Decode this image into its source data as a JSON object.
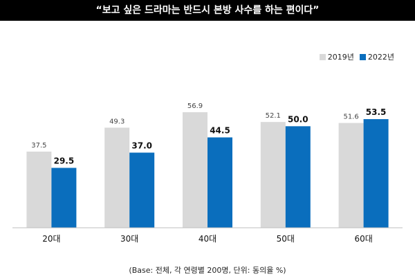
{
  "chart_data": {
    "type": "bar",
    "title": "“보고 싶은 드라마는 반드시 본방 사수를 하는 편이다”",
    "categories": [
      "20대",
      "30대",
      "40대",
      "50대",
      "60대"
    ],
    "series": [
      {
        "name": "2019년",
        "values": [
          37.5,
          49.3,
          56.9,
          52.1,
          51.6
        ],
        "labels": [
          "37.5",
          "49.3",
          "56.9",
          "52.1",
          "51.6"
        ],
        "color": "#d9d9d9"
      },
      {
        "name": "2022년",
        "values": [
          29.5,
          37.0,
          44.5,
          50.0,
          53.5
        ],
        "labels": [
          "29.5",
          "37.0",
          "44.5",
          "50.0",
          "53.5"
        ],
        "color": "#0a6ebd"
      }
    ],
    "ylim": [
      0,
      60
    ],
    "grid": false,
    "legend": "top-right",
    "note": "(Base: 전체, 각 연령별 200명, 단위: 동의율 %)"
  }
}
